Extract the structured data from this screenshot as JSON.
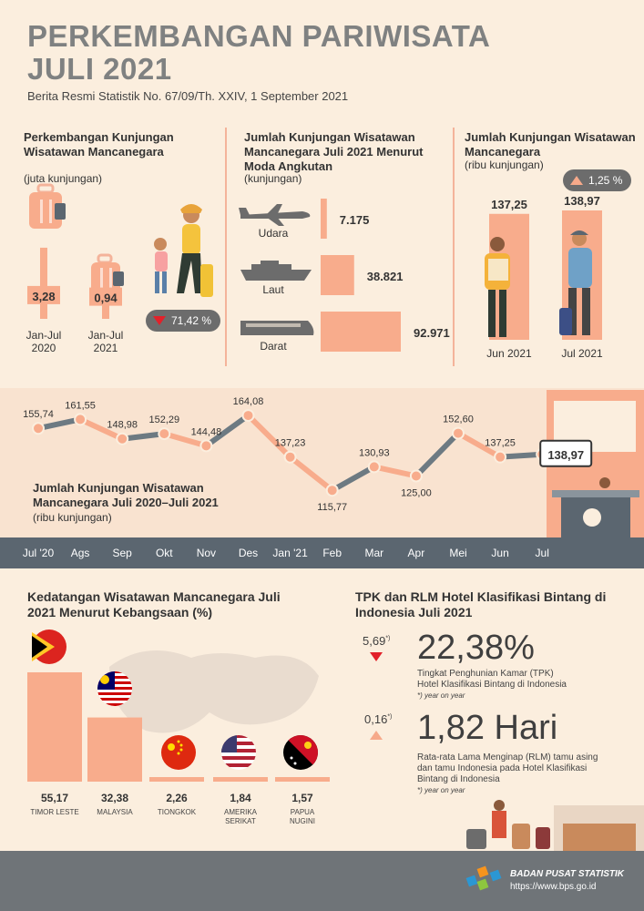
{
  "title_line1": "PERKEMBANGAN PARIWISATA",
  "title_line2": "JULI 2021",
  "subtitle": "Berita Resmi Statistik No. 67/09/Th. XXIV, 1 September 2021",
  "section1": {
    "heading": "Perkembangan Kunjungan Wisatawan Mancanegara",
    "unit": "(juta kunjungan)",
    "change": "71,42 %",
    "change_direction": "down"
  },
  "section2": {
    "heading": "Jumlah Kunjungan Wisatawan Mancanegara Juli 2021 Menurut Moda Angkutan",
    "unit": "(kunjungan)"
  },
  "section3": {
    "heading": "Jumlah Kunjungan Wisatawan Mancanegara",
    "unit": "(ribu kunjungan)",
    "change": "1,25 %",
    "change_direction": "up"
  },
  "timeline": {
    "heading": "Jumlah Kunjungan Wisatawan Mancanegara Juli 2020–Juli 2021",
    "unit": "(ribu kunjungan)"
  },
  "nationality": {
    "heading": "Kedatangan Wisatawan Mancanegara Juli 2021 Menurut Kebangsaan (%)"
  },
  "hotel": {
    "heading": "TPK dan RLM Hotel Klasifikasi Bintang di Indonesia Juli 2021",
    "tpk_value": "22,38%",
    "tpk_change": "5,69",
    "tpk_change_sup": "*)",
    "tpk_desc1": "Tingkat Penghunian Kamar (TPK)",
    "tpk_desc2": "Hotel Klasifikasi Bintang di Indonesia",
    "tpk_note": "*) year on year",
    "rlm_value": "1,82 Hari",
    "rlm_change": "0,16",
    "rlm_change_sup": "*)",
    "rlm_desc1": "Rata-rata Lama Menginap (RLM) tamu asing",
    "rlm_desc2": "dan tamu Indonesia pada Hotel Klasifikasi",
    "rlm_desc3": "Bintang di Indonesia",
    "rlm_note": "*) year on year"
  },
  "footer": {
    "org": "BADAN PUSAT STATISTIK",
    "url": "https://www.bps.go.id"
  },
  "colors": {
    "accent": "#f8ac8c",
    "title": "#7f8181",
    "down": "#e2212a",
    "line": "#6d7a82"
  },
  "chart_data": [
    {
      "type": "bar",
      "categories": [
        "Jan-Jul 2020",
        "Jan-Jul 2021"
      ],
      "values": [
        3.28,
        0.94
      ],
      "labels": [
        "3,28",
        "0,94"
      ],
      "category_labels": [
        [
          "Jan-Jul",
          "2020"
        ],
        [
          "Jan-Jul",
          "2021"
        ]
      ]
    },
    {
      "type": "bar",
      "orientation": "horizontal",
      "categories": [
        "Udara",
        "Laut",
        "Darat"
      ],
      "values": [
        7175,
        38821,
        92971
      ],
      "labels": [
        "7.175",
        "38.821",
        "92.971"
      ]
    },
    {
      "type": "bar",
      "categories": [
        "Jun 2021",
        "Jul 2021"
      ],
      "values": [
        137.25,
        138.97
      ],
      "labels": [
        "137,25",
        "138,97"
      ]
    },
    {
      "type": "line",
      "categories": [
        "Jul '20",
        "Ags",
        "Sep",
        "Okt",
        "Nov",
        "Des",
        "Jan '21",
        "Feb",
        "Mar",
        "Apr",
        "Mei",
        "Jun",
        "Jul"
      ],
      "values": [
        155.74,
        161.55,
        148.98,
        152.29,
        144.48,
        164.08,
        137.23,
        115.77,
        130.93,
        125.0,
        152.6,
        137.25,
        138.97
      ],
      "labels": [
        "155,74",
        "161,55",
        "148,98",
        "152,29",
        "144,48",
        "164,08",
        "137,23",
        "115,77",
        "130,93",
        "125,00",
        "152,60",
        "137,25",
        "138,97"
      ]
    },
    {
      "type": "bar",
      "categories": [
        "TIMOR LESTE",
        "MALAYSIA",
        "TIONGKOK",
        "AMERIKA SERIKAT",
        "PAPUA NUGINI"
      ],
      "category_labels": [
        [
          "TIMOR LESTE"
        ],
        [
          "MALAYSIA"
        ],
        [
          "TIONGKOK"
        ],
        [
          "AMERIKA",
          "SERIKAT"
        ],
        [
          "PAPUA",
          "NUGINI"
        ]
      ],
      "values": [
        55.17,
        32.38,
        2.26,
        1.84,
        1.57
      ],
      "labels": [
        "55,17",
        "32,38",
        "2,26",
        "1,84",
        "1,57"
      ]
    }
  ]
}
